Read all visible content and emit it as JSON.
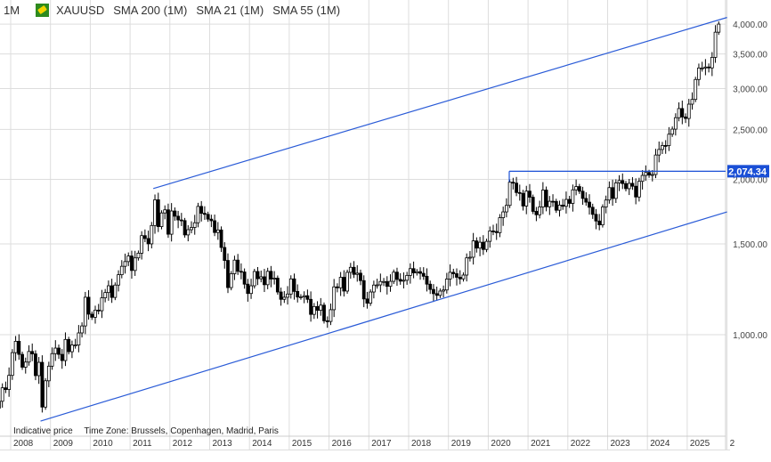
{
  "header": {
    "timeframe": "1M",
    "symbol": "XAUUSD",
    "indicators": [
      "SMA 200 (1M)",
      "SMA 21 (1M)",
      "SMA 55 (1M)"
    ],
    "symbol_icon": "gold-bar-icon"
  },
  "footer": {
    "indicative": "Indicative price",
    "timezone": "Time Zone: Brussels, Copenhagen, Madrid, Paris"
  },
  "chart_data": {
    "type": "candlestick",
    "y_scale": "log",
    "y_ticks": [
      {
        "v": 1000,
        "label": "1,000.00"
      },
      {
        "v": 1500,
        "label": "1,500.00"
      },
      {
        "v": 2000,
        "label": "2,000.00"
      },
      {
        "v": 2500,
        "label": "2,500.00"
      },
      {
        "v": 3000,
        "label": "3,000.00"
      },
      {
        "v": 3500,
        "label": "3,500.00"
      },
      {
        "v": 4000,
        "label": "4,000.00"
      }
    ],
    "x_ticks": [
      "2008",
      "2009",
      "2010",
      "2011",
      "2012",
      "2013",
      "2014",
      "2015",
      "2016",
      "2017",
      "2018",
      "2019",
      "2020",
      "2021",
      "2022",
      "2023",
      "2024",
      "2025",
      "2"
    ],
    "start": "2007-09",
    "monthly_close": [
      743,
      789,
      783,
      834,
      923,
      971,
      916,
      865,
      885,
      928,
      918,
      833,
      884,
      724,
      814,
      869,
      919,
      942,
      916,
      891,
      979,
      927,
      955,
      955,
      1008,
      1040,
      1182,
      1096,
      1081,
      1116,
      1113,
      1179,
      1207,
      1244,
      1181,
      1248,
      1307,
      1357,
      1386,
      1421,
      1332,
      1409,
      1439,
      1556,
      1536,
      1500,
      1628,
      1826,
      1620,
      1722,
      1746,
      1566,
      1737,
      1697,
      1669,
      1664,
      1561,
      1598,
      1614,
      1648,
      1773,
      1719,
      1711,
      1675,
      1663,
      1578,
      1596,
      1476,
      1393,
      1234,
      1313,
      1395,
      1327,
      1323,
      1253,
      1202,
      1244,
      1326,
      1284,
      1295,
      1250,
      1327,
      1282,
      1287,
      1210,
      1171,
      1182,
      1199,
      1283,
      1213,
      1183,
      1184,
      1190,
      1171,
      1095,
      1134,
      1115,
      1141,
      1064,
      1061,
      1118,
      1238,
      1233,
      1292,
      1215,
      1321,
      1351,
      1309,
      1316,
      1273,
      1173,
      1151,
      1210,
      1248,
      1249,
      1268,
      1268,
      1241,
      1269,
      1322,
      1280,
      1270,
      1275,
      1303,
      1343,
      1318,
      1325,
      1315,
      1298,
      1253,
      1224,
      1201,
      1192,
      1215,
      1221,
      1282,
      1321,
      1313,
      1292,
      1283,
      1305,
      1409,
      1413,
      1520,
      1472,
      1511,
      1463,
      1517,
      1589,
      1585,
      1577,
      1686,
      1730,
      1781,
      1975,
      1967,
      1886,
      1879,
      1776,
      1898,
      1847,
      1734,
      1708,
      1769,
      1907,
      1770,
      1814,
      1813,
      1743,
      1783,
      1774,
      1829,
      1797,
      1909,
      1937,
      1897,
      1837,
      1807,
      1766,
      1711,
      1661,
      1633,
      1768,
      1824,
      1928,
      1837,
      1969,
      1990,
      1963,
      1919,
      1965,
      1940,
      1849,
      1983,
      2036,
      2063,
      2039,
      2044,
      2230,
      2286,
      2327,
      2326,
      2447,
      2503,
      2634,
      2744,
      2643,
      2625,
      2798,
      2858,
      3124,
      3288,
      3289,
      3303,
      3290,
      3448,
      3858,
      4000
    ],
    "horizontal_line": {
      "value": 2074.34,
      "label": "2,074.34",
      "color": "#1a4fd6"
    },
    "trendlines": [
      {
        "from": [
          "2011-08",
          1920
        ],
        "to": [
          "2026-01",
          4120
        ],
        "color": "#2a5bd7"
      },
      {
        "from": [
          "2008-10",
          680
        ],
        "to": [
          "2026-01",
          1730
        ],
        "color": "#2a5bd7"
      }
    ],
    "grid": true,
    "colors": {
      "up": "#ffffff",
      "down": "#000000",
      "grid": "#dddddd"
    }
  }
}
